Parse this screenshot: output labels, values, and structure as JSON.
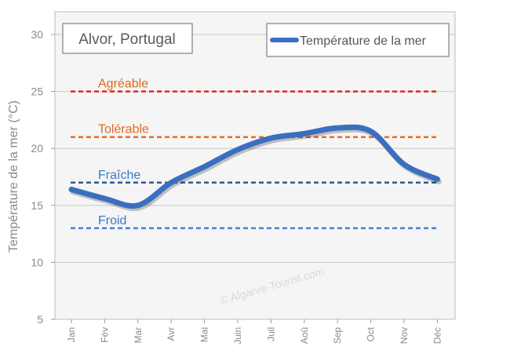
{
  "chart_data": {
    "type": "line",
    "title_box": "Alvor, Portugal",
    "ylabel": "Température de la mer (°C)",
    "ylim": [
      5,
      32
    ],
    "yticks": [
      5,
      10,
      15,
      20,
      25,
      30
    ],
    "categories": [
      "Jan",
      "Fév",
      "Mar",
      "Avr",
      "Mai",
      "Juin",
      "Juil",
      "Aoû",
      "Sep",
      "Oct",
      "Nov",
      "Déc"
    ],
    "series": [
      {
        "name": "Température de la mer",
        "color": "#3a6fbf",
        "values": [
          16.4,
          15.6,
          15.0,
          17.0,
          18.4,
          19.9,
          20.9,
          21.3,
          21.8,
          21.5,
          18.6,
          17.3
        ]
      }
    ],
    "reference_lines": [
      {
        "label": "Agréable",
        "value": 25,
        "color": "#e02a1c",
        "label_color": "#e0661c"
      },
      {
        "label": "Tolérable",
        "value": 21,
        "color": "#ee6a1a",
        "label_color": "#e06a1c"
      },
      {
        "label": "Fraîche",
        "value": 17,
        "color": "#2f5a9a",
        "label_color": "#3d77c9"
      },
      {
        "label": "Froid",
        "value": 13,
        "color": "#4a80cc",
        "label_color": "#3d77c9"
      }
    ],
    "legend_position": "top-right",
    "grid": true,
    "watermark": "© Algarve-Tourist.com"
  },
  "colors": {
    "plot_bg": "#f5f5f5",
    "grid": "#c8c8c8",
    "axis_text": "#8a8a8a"
  }
}
